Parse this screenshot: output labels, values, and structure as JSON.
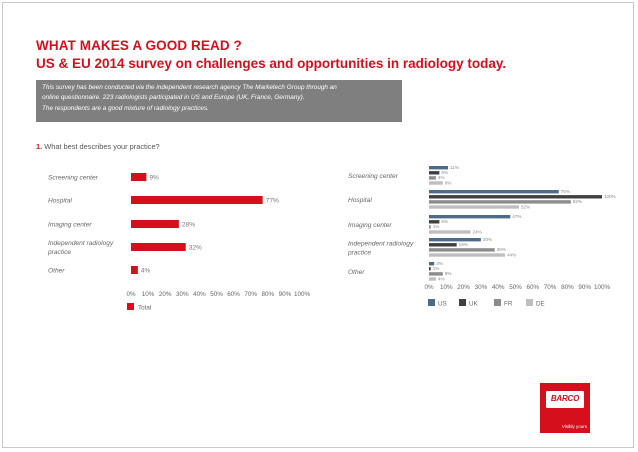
{
  "header": {
    "title_line1": "WHAT MAKES A GOOD READ ?",
    "title_line2": "US & EU 2014 survey on challenges and opportunities in radiology today."
  },
  "intro": {
    "line1": "This survey has been conducted via the independent research agency The Marketech Group through an",
    "line2": "online questionnaire. 223 radiologists participated in US and Europe (UK, France, Germany).",
    "line3": "The respondents are a good mixture of radiology practices."
  },
  "question": {
    "number": "1.",
    "text": "What best describes your practice?"
  },
  "chart_data": [
    {
      "type": "bar",
      "orientation": "horizontal",
      "categories": [
        "Screening center",
        "Hospital",
        "Imaging center",
        "Independent radiology practice",
        "Other"
      ],
      "category_lines": [
        [
          "Screening center"
        ],
        [
          "Hospital"
        ],
        [
          "Imaging center"
        ],
        [
          "Independent radiology",
          "practice"
        ],
        [
          "Other"
        ]
      ],
      "values": [
        9,
        77,
        28,
        32,
        4
      ],
      "value_labels": [
        "9%",
        "77%",
        "28%",
        "32%",
        "4%"
      ],
      "xlim": [
        0,
        100
      ],
      "xticks": [
        "0%",
        "10%",
        "20%",
        "30%",
        "40%",
        "50%",
        "60%",
        "70%",
        "80%",
        "90%",
        "100%"
      ],
      "legend": [
        "Total"
      ],
      "colors": [
        "#d5101c"
      ]
    },
    {
      "type": "bar",
      "orientation": "horizontal",
      "categories": [
        "Screening center",
        "Hospital",
        "Imaging center",
        "Independent radiology practice",
        "Other"
      ],
      "category_lines": [
        [
          "Screening center"
        ],
        [
          "Hospital"
        ],
        [
          "Imaging center"
        ],
        [
          "Independent radiology",
          "practice"
        ],
        [
          "Other"
        ]
      ],
      "series": [
        {
          "name": "US",
          "color": "#4f6b8c",
          "values": [
            11,
            75,
            47,
            30,
            3
          ]
        },
        {
          "name": "UK",
          "color": "#404040",
          "values": [
            6,
            100,
            6,
            16,
            1
          ]
        },
        {
          "name": "FR",
          "color": "#8c8c8c",
          "values": [
            4,
            82,
            1,
            38,
            8
          ]
        },
        {
          "name": "DE",
          "color": "#bfbfbf",
          "values": [
            8,
            52,
            24,
            44,
            4
          ]
        }
      ],
      "value_labels": [
        [
          "11%",
          "6%",
          "4%",
          "8%"
        ],
        [
          "75%",
          "100%",
          "82%",
          "52%"
        ],
        [
          "47%",
          "6%",
          "1%",
          "24%"
        ],
        [
          "30%",
          "16%",
          "38%",
          "44%"
        ],
        [
          "3%",
          "1%",
          "8%",
          "4%"
        ]
      ],
      "xlim": [
        0,
        100
      ],
      "xticks": [
        "0%",
        "10%",
        "20%",
        "30%",
        "40%",
        "50%",
        "60%",
        "70%",
        "80%",
        "90%",
        "100%"
      ],
      "legend": [
        "US",
        "UK",
        "FR",
        "DE"
      ]
    }
  ],
  "logo": {
    "brand": "BARCO",
    "tagline": "Visibly yours"
  }
}
